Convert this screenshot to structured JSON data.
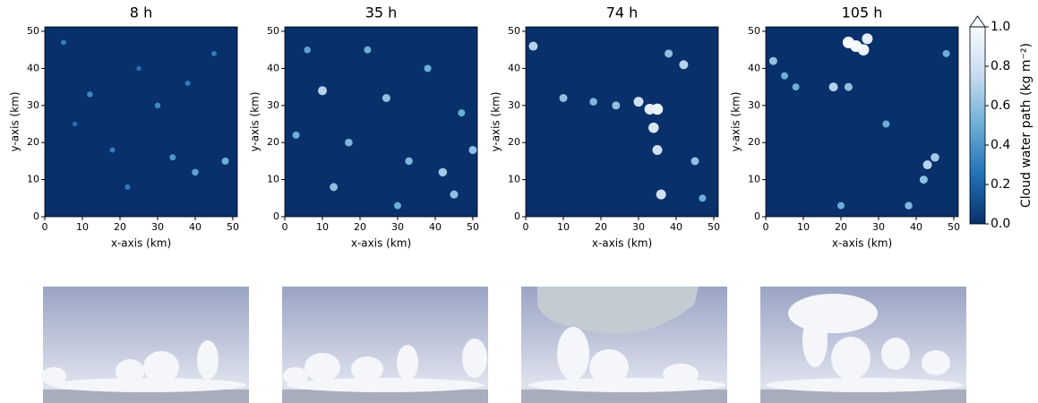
{
  "chart_data": [
    {
      "type": "heatmap",
      "title": "8 h",
      "x_label": "x-axis (km)",
      "y_label": "y-axis (km)",
      "xlim": [
        0,
        51.2
      ],
      "ylim": [
        0,
        51.2
      ],
      "xticks": [
        0,
        10,
        20,
        30,
        40,
        50
      ],
      "yticks": [
        0,
        10,
        20,
        30,
        40,
        50
      ],
      "x": [
        5,
        12,
        18,
        25,
        30,
        34,
        40,
        45,
        48,
        8,
        22,
        38
      ],
      "y": [
        47,
        33,
        18,
        40,
        30,
        16,
        12,
        44,
        15,
        25,
        8,
        36
      ],
      "values": [
        0.3,
        0.35,
        0.3,
        0.25,
        0.35,
        0.4,
        0.45,
        0.3,
        0.5,
        0.25,
        0.3,
        0.3
      ]
    },
    {
      "type": "heatmap",
      "title": "35 h",
      "x_label": "x-axis (km)",
      "y_label": "y-axis (km)",
      "xlim": [
        0,
        51.2
      ],
      "ylim": [
        0,
        51.2
      ],
      "xticks": [
        0,
        10,
        20,
        30,
        40,
        50
      ],
      "yticks": [
        0,
        10,
        20,
        30,
        40,
        50
      ],
      "x": [
        3,
        10,
        13,
        22,
        27,
        33,
        38,
        42,
        47,
        50,
        6,
        17,
        30,
        45
      ],
      "y": [
        22,
        34,
        8,
        45,
        32,
        15,
        40,
        12,
        28,
        18,
        45,
        20,
        3,
        6
      ],
      "values": [
        0.5,
        0.7,
        0.6,
        0.5,
        0.6,
        0.55,
        0.5,
        0.65,
        0.5,
        0.6,
        0.45,
        0.55,
        0.5,
        0.6
      ]
    },
    {
      "type": "heatmap",
      "title": "74 h",
      "x_label": "x-axis (km)",
      "y_label": "y-axis (km)",
      "xlim": [
        0,
        51.2
      ],
      "ylim": [
        0,
        51.2
      ],
      "xticks": [
        0,
        10,
        20,
        30,
        40,
        50
      ],
      "yticks": [
        0,
        10,
        20,
        30,
        40,
        50
      ],
      "x": [
        2,
        10,
        18,
        24,
        30,
        33,
        34,
        35,
        36,
        35,
        38,
        42,
        45,
        47
      ],
      "y": [
        46,
        32,
        31,
        30,
        31,
        29,
        24,
        18,
        6,
        29,
        44,
        41,
        15,
        5
      ],
      "values": [
        0.7,
        0.6,
        0.55,
        0.6,
        0.8,
        0.9,
        0.85,
        0.8,
        0.8,
        0.95,
        0.6,
        0.7,
        0.6,
        0.5
      ]
    },
    {
      "type": "heatmap",
      "title": "105 h",
      "x_label": "x-axis (km)",
      "y_label": "y-axis (km)",
      "xlim": [
        0,
        51.2
      ],
      "ylim": [
        0,
        51.2
      ],
      "xticks": [
        0,
        10,
        20,
        30,
        40,
        50
      ],
      "yticks": [
        0,
        10,
        20,
        30,
        40,
        50
      ],
      "x": [
        2,
        5,
        8,
        22,
        24,
        26,
        27,
        18,
        43,
        42,
        45,
        48,
        20,
        38,
        22,
        32
      ],
      "y": [
        42,
        38,
        35,
        47,
        46,
        45,
        48,
        35,
        14,
        10,
        16,
        44,
        3,
        3,
        35,
        25
      ],
      "values": [
        0.6,
        0.5,
        0.5,
        1.0,
        1.0,
        0.95,
        0.9,
        0.7,
        0.7,
        0.6,
        0.65,
        0.5,
        0.5,
        0.55,
        0.6,
        0.5
      ]
    }
  ],
  "colorbar": {
    "label": "Cloud water path (kg m⁻²)",
    "lim": [
      0,
      1
    ],
    "ticks": [
      {
        "value": 0,
        "label": "0.0"
      },
      0.2,
      0.4,
      0.6,
      0.8,
      {
        "value": 1,
        "label": "1.0"
      }
    ],
    "colors": [
      "#08306b",
      "#2171b5",
      "#6baed6",
      "#c6dbef",
      "#f7fbff"
    ]
  }
}
